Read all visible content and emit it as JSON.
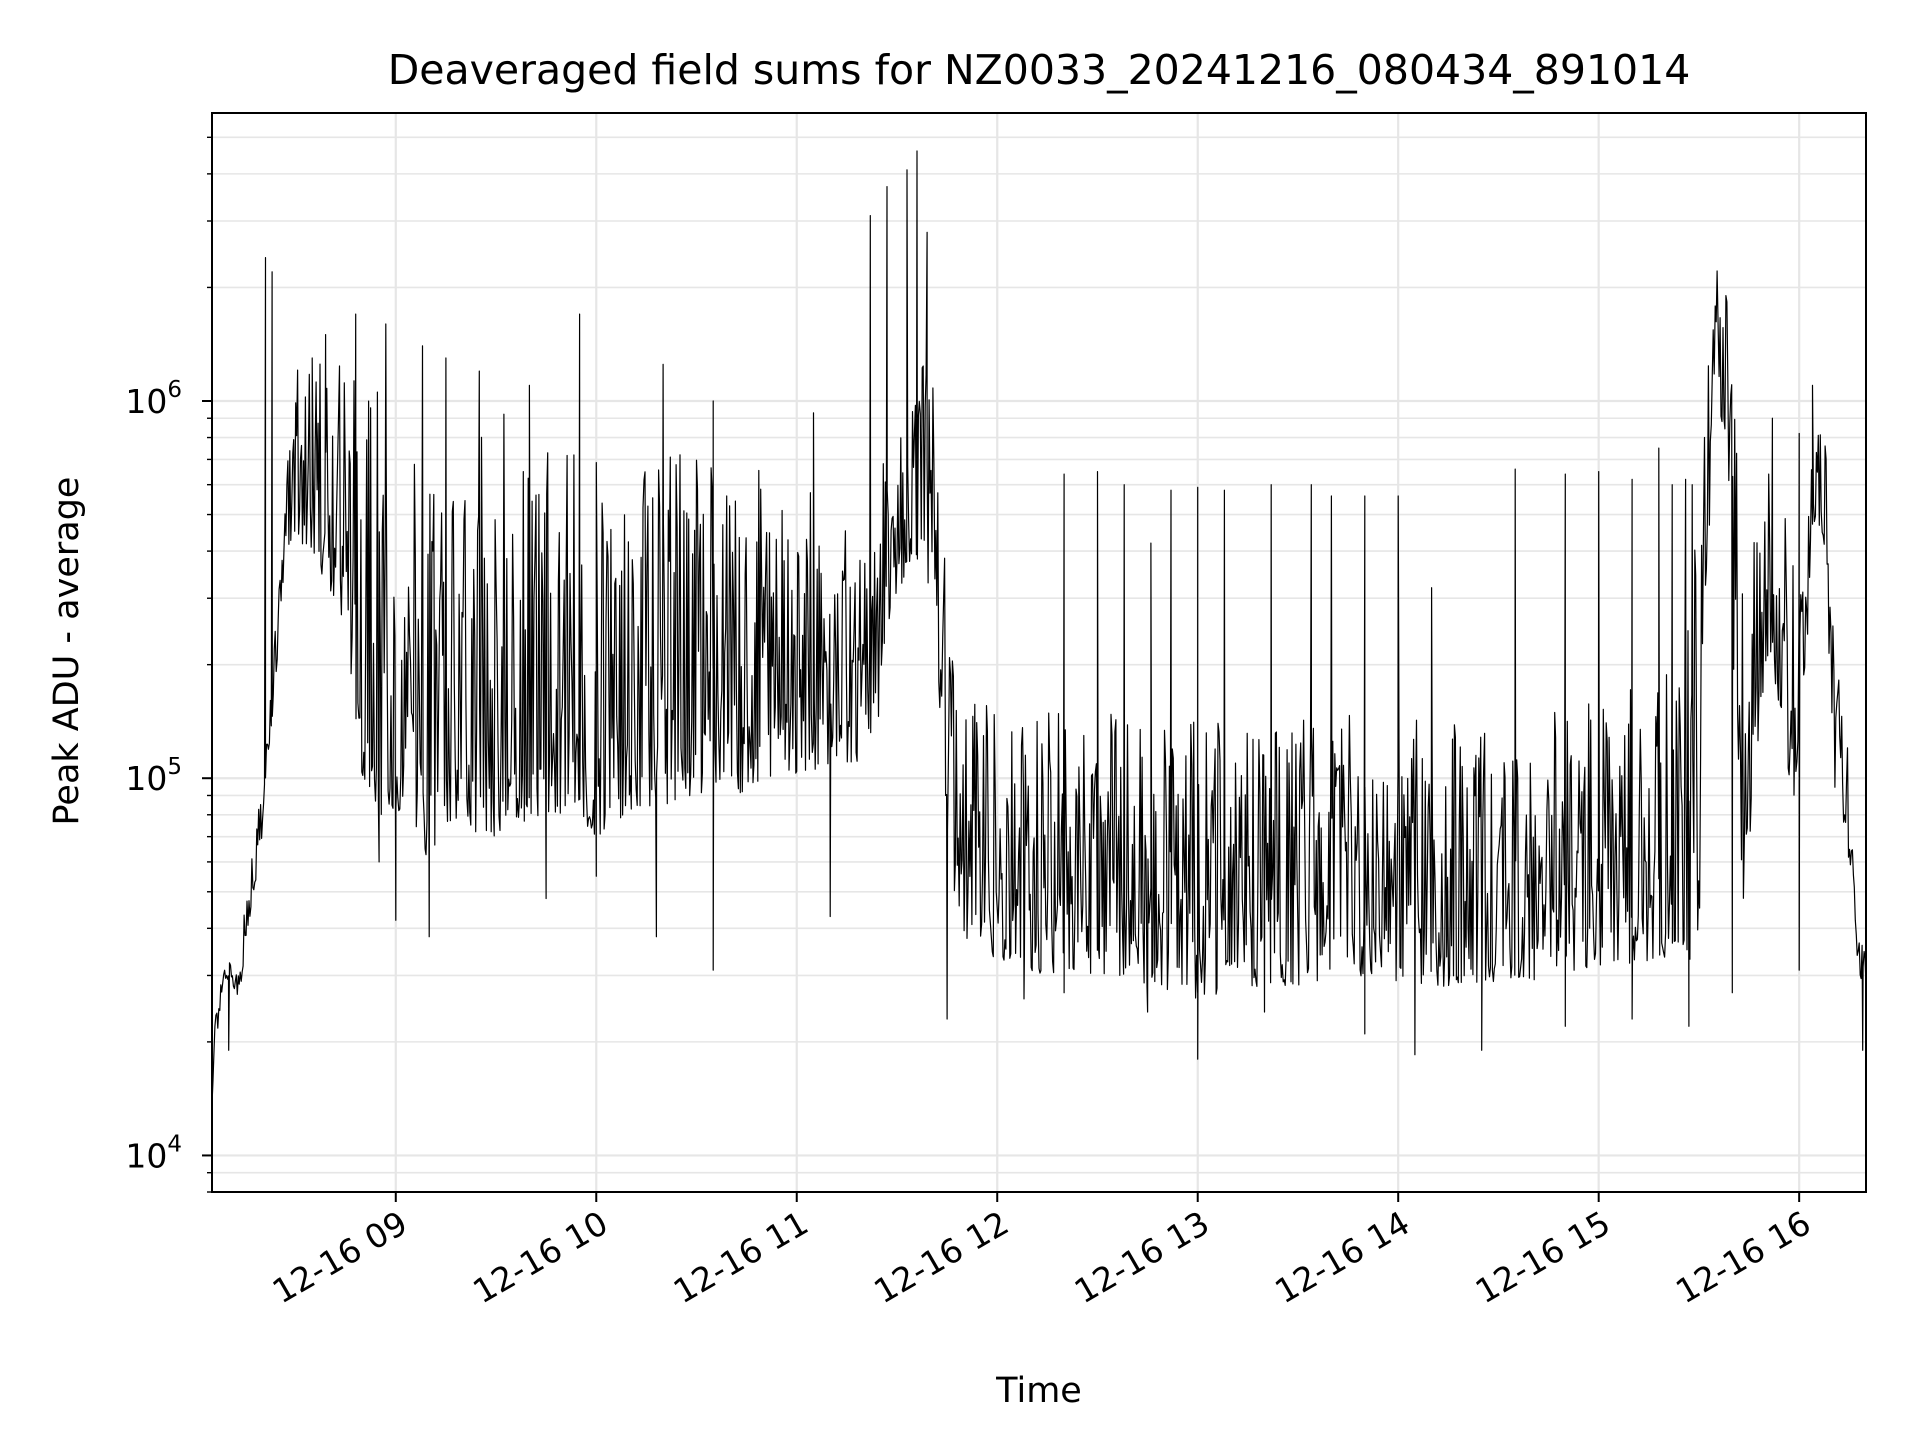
{
  "chart_data": {
    "type": "line",
    "title": "Deaveraged field sums for NZ0033_20241216_080434_891014",
    "xlabel": "Time",
    "ylabel": "Peak ADU - average",
    "yscale": "log",
    "ylim": [
      8000,
      5800000
    ],
    "xlim": [
      "2024-12-16 08:05",
      "2024-12-16 16:20"
    ],
    "grid": true,
    "line_color": "#000000",
    "grid_color": "#e6e6e6",
    "x_ticks": [
      {
        "value": "2024-12-16 09:00",
        "label": "12-16 09"
      },
      {
        "value": "2024-12-16 10:00",
        "label": "12-16 10"
      },
      {
        "value": "2024-12-16 11:00",
        "label": "12-16 11"
      },
      {
        "value": "2024-12-16 12:00",
        "label": "12-16 12"
      },
      {
        "value": "2024-12-16 13:00",
        "label": "12-16 13"
      },
      {
        "value": "2024-12-16 14:00",
        "label": "12-16 14"
      },
      {
        "value": "2024-12-16 15:00",
        "label": "12-16 15"
      },
      {
        "value": "2024-12-16 16:00",
        "label": "12-16 16"
      }
    ],
    "y_ticks": [
      {
        "value": 10000,
        "base": "10",
        "exp": "4"
      },
      {
        "value": 100000,
        "base": "10",
        "exp": "5"
      },
      {
        "value": 1000000,
        "base": "10",
        "exp": "6"
      }
    ],
    "series": [
      {
        "x": [
          "2024-12-16 08:05",
          "2024-12-16 08:06",
          "2024-12-16 08:08",
          "2024-12-16 08:10",
          "2024-12-16 08:13",
          "2024-12-16 08:16",
          "2024-12-16 08:20",
          "2024-12-16 08:24",
          "2024-12-16 08:27",
          "2024-12-16 08:30",
          "2024-12-16 08:33",
          "2024-12-16 08:35",
          "2024-12-16 08:40",
          "2024-12-16 08:45",
          "2024-12-16 08:50",
          "2024-12-16 08:55",
          "2024-12-16 09:00",
          "2024-12-16 09:05",
          "2024-12-16 09:10",
          "2024-12-16 09:15",
          "2024-12-16 09:20",
          "2024-12-16 09:25",
          "2024-12-16 09:30",
          "2024-12-16 09:35",
          "2024-12-16 09:40",
          "2024-12-16 09:45",
          "2024-12-16 09:50",
          "2024-12-16 09:55",
          "2024-12-16 10:00",
          "2024-12-16 10:10",
          "2024-12-16 10:20",
          "2024-12-16 10:30",
          "2024-12-16 10:40",
          "2024-12-16 10:50",
          "2024-12-16 11:00",
          "2024-12-16 11:10",
          "2024-12-16 11:20",
          "2024-12-16 11:25",
          "2024-12-16 11:30",
          "2024-12-16 11:35",
          "2024-12-16 11:38",
          "2024-12-16 11:41",
          "2024-12-16 11:45",
          "2024-12-16 11:50",
          "2024-12-16 12:00",
          "2024-12-16 12:15",
          "2024-12-16 12:30",
          "2024-12-16 12:45",
          "2024-12-16 13:00",
          "2024-12-16 13:15",
          "2024-12-16 13:30",
          "2024-12-16 13:45",
          "2024-12-16 14:00",
          "2024-12-16 14:15",
          "2024-12-16 14:30",
          "2024-12-16 14:45",
          "2024-12-16 15:00",
          "2024-12-16 15:15",
          "2024-12-16 15:25",
          "2024-12-16 15:30",
          "2024-12-16 15:33",
          "2024-12-16 15:35",
          "2024-12-16 15:38",
          "2024-12-16 15:41",
          "2024-12-16 15:43",
          "2024-12-16 15:47",
          "2024-12-16 15:50",
          "2024-12-16 15:55",
          "2024-12-16 15:58",
          "2024-12-16 16:02",
          "2024-12-16 16:05",
          "2024-12-16 16:08",
          "2024-12-16 16:10",
          "2024-12-16 16:12",
          "2024-12-16 16:14",
          "2024-12-16 16:16",
          "2024-12-16 16:18",
          "2024-12-16 16:20"
        ],
        "lo": [
          13000,
          20000,
          25000,
          30000,
          26000,
          40000,
          70000,
          180000,
          400000,
          450000,
          400000,
          400000,
          300000,
          250000,
          100000,
          80000,
          80000,
          70000,
          60000,
          75000,
          80000,
          70000,
          70000,
          80000,
          75000,
          80000,
          80000,
          75000,
          70000,
          80000,
          85000,
          90000,
          90000,
          95000,
          100000,
          110000,
          110000,
          150000,
          300000,
          400000,
          350000,
          300000,
          60000,
          38000,
          32000,
          30000,
          30000,
          28000,
          26000,
          28000,
          28000,
          30000,
          29000,
          28000,
          29000,
          29000,
          32000,
          32000,
          34000,
          32000,
          400000,
          1000000,
          800000,
          100000,
          45000,
          100000,
          200000,
          150000,
          80000,
          200000,
          500000,
          400000,
          100000,
          85000,
          70000,
          40000,
          30000,
          28000
        ],
        "hi": [
          14000,
          24000,
          30000,
          33000,
          30000,
          60000,
          100000,
          250000,
          600000,
          1200000,
          1300000,
          1200000,
          1400000,
          1300000,
          1200000,
          1200000,
          1200000,
          1100000,
          1000000,
          1000000,
          1000000,
          950000,
          900000,
          950000,
          950000,
          900000,
          900000,
          850000,
          800000,
          800000,
          750000,
          700000,
          700000,
          650000,
          600000,
          550000,
          500000,
          700000,
          900000,
          1100000,
          1400000,
          1100000,
          400000,
          180000,
          150000,
          150000,
          150000,
          150000,
          140000,
          140000,
          150000,
          150000,
          150000,
          140000,
          140000,
          150000,
          160000,
          180000,
          200000,
          1000000,
          2000000,
          2400000,
          2000000,
          1000000,
          400000,
          600000,
          650000,
          650000,
          450000,
          550000,
          1000000,
          900000,
          500000,
          200000,
          140000,
          80000,
          40000,
          33000
        ],
        "spikes": [
          [
            "2024-12-16 08:21",
            2400000
          ],
          [
            "2024-12-16 08:23",
            2200000
          ],
          [
            "2024-12-16 08:35",
            1300000
          ],
          [
            "2024-12-16 08:39",
            1500000
          ],
          [
            "2024-12-16 08:48",
            1700000
          ],
          [
            "2024-12-16 08:57",
            1600000
          ],
          [
            "2024-12-16 09:08",
            1400000
          ],
          [
            "2024-12-16 09:15",
            1300000
          ],
          [
            "2024-12-16 09:25",
            1200000
          ],
          [
            "2024-12-16 09:40",
            1100000
          ],
          [
            "2024-12-16 09:55",
            1700000
          ],
          [
            "2024-12-16 10:20",
            1250000
          ],
          [
            "2024-12-16 10:35",
            1000000
          ],
          [
            "2024-12-16 11:05",
            930000
          ],
          [
            "2024-12-16 11:22",
            3100000
          ],
          [
            "2024-12-16 11:27",
            3700000
          ],
          [
            "2024-12-16 11:33",
            4100000
          ],
          [
            "2024-12-16 11:36",
            4600000
          ],
          [
            "2024-12-16 11:39",
            2800000
          ],
          [
            "2024-12-16 12:20",
            640000
          ],
          [
            "2024-12-16 12:30",
            650000
          ],
          [
            "2024-12-16 12:38",
            600000
          ],
          [
            "2024-12-16 12:46",
            420000
          ],
          [
            "2024-12-16 12:52",
            580000
          ],
          [
            "2024-12-16 13:00",
            590000
          ],
          [
            "2024-12-16 13:08",
            580000
          ],
          [
            "2024-12-16 13:22",
            600000
          ],
          [
            "2024-12-16 13:34",
            600000
          ],
          [
            "2024-12-16 13:40",
            560000
          ],
          [
            "2024-12-16 13:50",
            560000
          ],
          [
            "2024-12-16 14:00",
            560000
          ],
          [
            "2024-12-16 14:10",
            320000
          ],
          [
            "2024-12-16 14:35",
            660000
          ],
          [
            "2024-12-16 14:50",
            640000
          ],
          [
            "2024-12-16 15:00",
            650000
          ],
          [
            "2024-12-16 15:10",
            620000
          ],
          [
            "2024-12-16 15:18",
            750000
          ],
          [
            "2024-12-16 15:22",
            600000
          ],
          [
            "2024-12-16 15:26",
            620000
          ],
          [
            "2024-12-16 15:28",
            600000
          ],
          [
            "2024-12-16 15:52",
            900000
          ],
          [
            "2024-12-16 16:00",
            820000
          ],
          [
            "2024-12-16 16:04",
            1100000
          ]
        ],
        "dips": [
          [
            "2024-12-16 08:10",
            19000
          ],
          [
            "2024-12-16 08:55",
            60000
          ],
          [
            "2024-12-16 09:00",
            42000
          ],
          [
            "2024-12-16 09:10",
            38000
          ],
          [
            "2024-12-16 09:45",
            48000
          ],
          [
            "2024-12-16 10:00",
            55000
          ],
          [
            "2024-12-16 10:18",
            38000
          ],
          [
            "2024-12-16 10:35",
            31000
          ],
          [
            "2024-12-16 11:10",
            43000
          ],
          [
            "2024-12-16 11:45",
            23000
          ],
          [
            "2024-12-16 12:08",
            26000
          ],
          [
            "2024-12-16 12:20",
            27000
          ],
          [
            "2024-12-16 12:45",
            24000
          ],
          [
            "2024-12-16 13:00",
            18000
          ],
          [
            "2024-12-16 13:20",
            24000
          ],
          [
            "2024-12-16 13:50",
            21000
          ],
          [
            "2024-12-16 14:05",
            18500
          ],
          [
            "2024-12-16 14:25",
            19000
          ],
          [
            "2024-12-16 14:50",
            22000
          ],
          [
            "2024-12-16 15:10",
            23000
          ],
          [
            "2024-12-16 15:27",
            22000
          ],
          [
            "2024-12-16 15:40",
            27000
          ],
          [
            "2024-12-16 16:00",
            31000
          ],
          [
            "2024-12-16 16:19",
            19000
          ]
        ]
      }
    ]
  }
}
